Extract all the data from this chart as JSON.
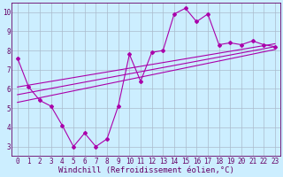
{
  "xlabel": "Windchill (Refroidissement éolien,°C)",
  "background_color": "#cceeff",
  "line_color": "#aa00aa",
  "grid_color": "#aabbcc",
  "x_data": [
    0,
    1,
    2,
    3,
    4,
    5,
    6,
    7,
    8,
    9,
    10,
    11,
    12,
    13,
    14,
    15,
    16,
    17,
    18,
    19,
    20,
    21,
    22,
    23
  ],
  "y_data": [
    7.6,
    6.1,
    5.4,
    5.1,
    4.1,
    3.0,
    3.7,
    3.0,
    3.4,
    5.1,
    7.8,
    6.4,
    7.9,
    8.0,
    9.9,
    10.2,
    9.5,
    9.9,
    8.3,
    8.4,
    8.3,
    8.5,
    8.3,
    8.2
  ],
  "trend_lines": [
    {
      "x0": 0,
      "y0": 6.1,
      "x1": 23,
      "y1": 8.35
    },
    {
      "x0": 0,
      "y0": 5.7,
      "x1": 23,
      "y1": 8.2
    },
    {
      "x0": 0,
      "y0": 5.3,
      "x1": 23,
      "y1": 8.05
    }
  ],
  "ylim": [
    2.5,
    10.5
  ],
  "xlim": [
    -0.5,
    23.5
  ],
  "yticks": [
    3,
    4,
    5,
    6,
    7,
    8,
    9,
    10
  ],
  "xticks": [
    0,
    1,
    2,
    3,
    4,
    5,
    6,
    7,
    8,
    9,
    10,
    11,
    12,
    13,
    14,
    15,
    16,
    17,
    18,
    19,
    20,
    21,
    22,
    23
  ],
  "tick_fontsize": 5.5,
  "xlabel_fontsize": 6.5,
  "spine_color": "#660066",
  "text_color": "#660066"
}
